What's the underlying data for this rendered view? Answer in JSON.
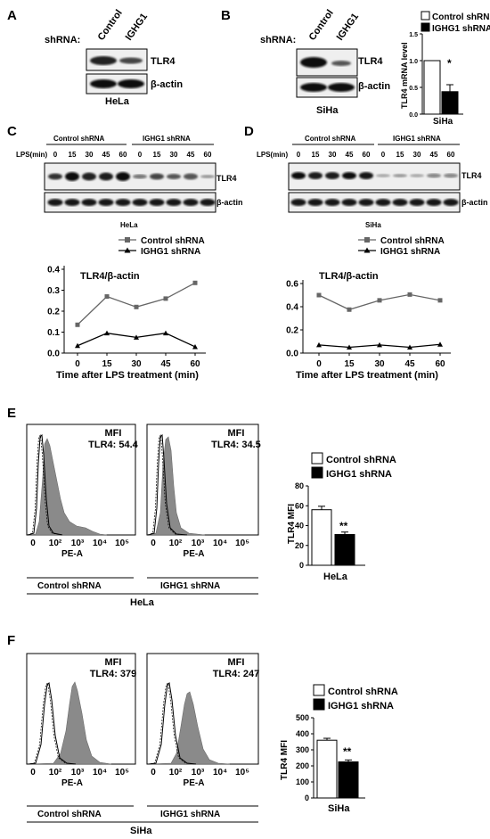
{
  "panels": {
    "A": {
      "letter": "A",
      "shrna_label": "shRNA:",
      "lanes": [
        "Control",
        "IGHG1"
      ],
      "bands": [
        "TLR4",
        "β-actin"
      ],
      "cell_line": "HeLa"
    },
    "B": {
      "letter": "B",
      "shrna_label": "shRNA:",
      "lanes": [
        "Control",
        "IGHG1"
      ],
      "bands": [
        "TLR4",
        "β-actin"
      ],
      "cell_line": "SiHa",
      "significance": "*"
    },
    "C": {
      "letter": "C",
      "groups": [
        "Control shRNA",
        "IGHG1 shRNA"
      ],
      "lps_label": "LPS(min)",
      "timepoints": [
        "0",
        "15",
        "30",
        "45",
        "60",
        "0",
        "15",
        "30",
        "45",
        "60"
      ],
      "bands": [
        "TLR4",
        "β-actin"
      ],
      "cell_line": "HeLa"
    },
    "D": {
      "letter": "D",
      "groups": [
        "Control shRNA",
        "IGHG1 shRNA"
      ],
      "lps_label": "LPS(min)",
      "timepoints": [
        "0",
        "15",
        "30",
        "45",
        "60",
        "0",
        "15",
        "30",
        "45",
        "60"
      ],
      "bands": [
        "TLR4",
        "β-actin"
      ],
      "cell_line": "SiHa"
    },
    "E": {
      "letter": "E",
      "histograms": [
        {
          "mfi_label": "MFI",
          "mfi_value": "TLR4: 54.4",
          "xlabel": "PE-A",
          "group": "Control shRNA"
        },
        {
          "mfi_label": "MFI",
          "mfi_value": "TLR4: 34.5",
          "xlabel": "PE-A",
          "group": "IGHG1 shRNA"
        }
      ],
      "cell_line": "HeLa",
      "significance": "**"
    },
    "F": {
      "letter": "F",
      "histograms": [
        {
          "mfi_label": "MFI",
          "mfi_value": "TLR4: 379",
          "xlabel": "PE-A",
          "group": "Control shRNA"
        },
        {
          "mfi_label": "MFI",
          "mfi_value": "TLR4: 247",
          "xlabel": "PE-A",
          "group": "IGHG1 shRNA"
        }
      ],
      "cell_line": "SiHa",
      "significance": "**"
    }
  },
  "flow_xticks": [
    "0",
    "10²",
    "10³",
    "10⁴",
    "10⁵"
  ],
  "chart_data": [
    {
      "panel": "B",
      "type": "bar",
      "categories": [
        "Control shRNA",
        "IGHG1 shRNA"
      ],
      "values": [
        1.0,
        0.42
      ],
      "errors": [
        0.0,
        0.13
      ],
      "title": "",
      "xlabel": "SiHa",
      "ylabel": "TLR4 mRNA level",
      "ylim": [
        0,
        1.5
      ],
      "yticks": [
        "0.0",
        "0.5",
        "1.0",
        "1.5"
      ],
      "legend": [
        "Control shRNA",
        "IGHG1 shRNA"
      ],
      "colors": [
        "#ffffff",
        "#000000"
      ]
    },
    {
      "panel": "C",
      "type": "line",
      "title": "TLR4/β-actin",
      "xlabel": "Time after LPS treatment (min)",
      "ylabel": "",
      "x": [
        0,
        15,
        30,
        45,
        60
      ],
      "ylim": [
        0,
        0.4
      ],
      "yticks": [
        "0.0",
        "0.1",
        "0.2",
        "0.3",
        "0.4"
      ],
      "series": [
        {
          "name": "Control shRNA",
          "values": [
            0.135,
            0.27,
            0.22,
            0.26,
            0.335
          ],
          "color": "#666666",
          "marker": "square"
        },
        {
          "name": "IGHG1 shRNA",
          "values": [
            0.035,
            0.095,
            0.075,
            0.095,
            0.03
          ],
          "color": "#000000",
          "marker": "triangle"
        }
      ],
      "legend": "top"
    },
    {
      "panel": "D",
      "type": "line",
      "title": "TLR4/β-actin",
      "xlabel": "Time after LPS treatment (min)",
      "ylabel": "",
      "x": [
        0,
        15,
        30,
        45,
        60
      ],
      "ylim": [
        0,
        0.6
      ],
      "yticks": [
        "0.0",
        "0.2",
        "0.4",
        "0.6"
      ],
      "series": [
        {
          "name": "Control shRNA",
          "values": [
            0.5,
            0.375,
            0.455,
            0.505,
            0.455
          ],
          "color": "#666666",
          "marker": "square"
        },
        {
          "name": "IGHG1 shRNA",
          "values": [
            0.07,
            0.05,
            0.07,
            0.05,
            0.075
          ],
          "color": "#000000",
          "marker": "triangle"
        }
      ],
      "legend": "top"
    },
    {
      "panel": "E",
      "type": "bar",
      "categories": [
        "Control shRNA",
        "IGHG1 shRNA"
      ],
      "values": [
        56,
        31
      ],
      "errors": [
        3.5,
        2.5
      ],
      "xlabel": "HeLa",
      "ylabel": "TLR4 MFI",
      "ylim": [
        0,
        80
      ],
      "yticks": [
        "0",
        "20",
        "40",
        "60",
        "80"
      ],
      "legend": [
        "Control shRNA",
        "IGHG1 shRNA"
      ],
      "colors": [
        "#ffffff",
        "#000000"
      ]
    },
    {
      "panel": "F",
      "type": "bar",
      "categories": [
        "Control shRNA",
        "IGHG1 shRNA"
      ],
      "values": [
        360,
        225
      ],
      "errors": [
        12,
        12
      ],
      "xlabel": "SiHa",
      "ylabel": "TLR4 MFI",
      "ylim": [
        0,
        500
      ],
      "yticks": [
        "0",
        "100",
        "200",
        "300",
        "400",
        "500"
      ],
      "legend": [
        "Control shRNA",
        "IGHG1 shRNA"
      ],
      "colors": [
        "#ffffff",
        "#000000"
      ]
    }
  ]
}
